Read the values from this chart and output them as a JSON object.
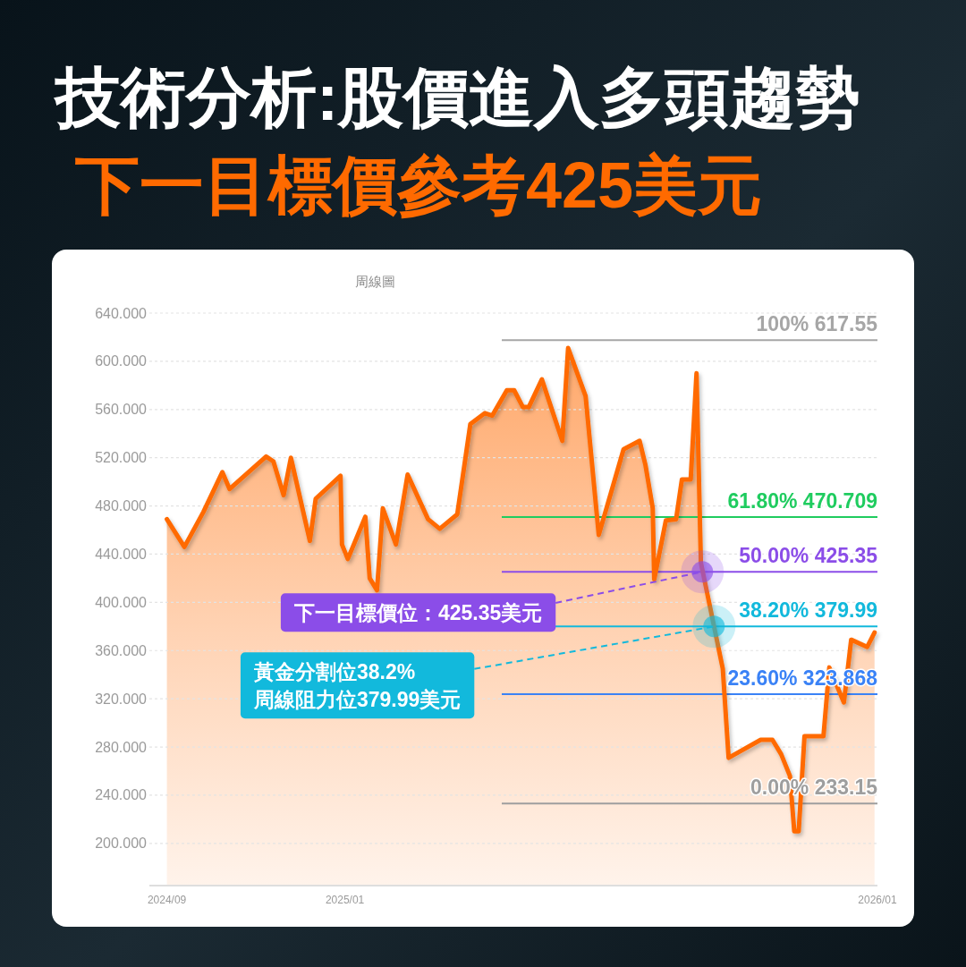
{
  "chart_data": {
    "type": "area",
    "title": "技術分析:股價進入多頭趨勢",
    "subtitle": "下一目標價參考425美元",
    "annotations": [
      "周線圖",
      {
        "text": "下一目標價位：425.35美元",
        "x": "2025-09-03",
        "y": 425.35
      },
      {
        "text": "黃金分割位38.2%\n周線阻力位379.99美元",
        "x": "2025-09-11",
        "y": 379.99
      }
    ],
    "series": [
      {
        "color": "#ff6a00",
        "x": [
          "2024-09-01",
          "2024-09-13",
          "2024-09-26",
          "2024-10-09",
          "2024-10-14",
          "2024-11-08",
          "2024-11-13",
          "2024-11-20",
          "2024-11-25",
          "2024-12-08",
          "2024-12-12",
          "2024-12-29",
          "2024-12-30",
          "2025-01-03",
          "2025-01-15",
          "2025-01-18",
          "2025-01-23",
          "2025-01-27",
          "2025-02-05",
          "2025-02-13",
          "2025-02-27",
          "2025-03-07",
          "2025-03-19",
          "2025-03-28",
          "2025-04-07",
          "2025-04-12",
          "2025-04-22",
          "2025-04-27",
          "2025-05-03",
          "2025-05-07",
          "2025-05-16",
          "2025-05-30",
          "2025-06-03",
          "2025-06-15",
          "2025-06-24",
          "2025-07-11",
          "2025-07-22",
          "2025-07-26",
          "2025-07-31",
          "2025-08-01",
          "2025-08-09",
          "2025-08-16",
          "2025-08-20",
          "2025-08-26",
          "2025-08-30",
          "2025-09-02",
          "2025-09-17",
          "2025-09-21",
          "2025-10-13",
          "2025-10-21",
          "2025-10-27",
          "2025-11-02",
          "2025-11-05",
          "2025-11-08",
          "2025-11-12",
          "2025-11-25",
          "2025-11-29",
          "2025-12-09",
          "2025-12-14",
          "2025-12-25",
          "2025-12-30"
        ],
        "values": [
          469,
          446,
          475,
          508,
          494,
          521,
          517,
          489,
          520,
          451,
          486,
          505,
          448,
          436,
          471,
          420,
          410,
          478,
          448,
          506,
          469,
          461,
          473,
          548,
          557,
          555,
          576,
          576,
          562,
          562,
          585,
          534,
          611,
          571,
          456,
          527,
          534,
          514,
          478,
          419,
          468,
          469,
          502,
          502,
          590,
          433,
          345,
          271,
          286,
          286,
          274,
          256,
          210,
          210,
          289,
          289,
          346,
          317,
          369,
          363,
          375
        ]
      },
      {
        "type": "scatter",
        "x": [
          "2025-09-03",
          "2025-09-11"
        ],
        "values": [
          425.35,
          379.99
        ],
        "colors": [
          "#8b4de8",
          "#12b9dc"
        ]
      }
    ],
    "xlim": [
      "2024-08-20",
      "2026-01-01"
    ],
    "xticks": [
      {
        "value": "2024-09",
        "label": "2024/09"
      },
      {
        "value": "2025-01",
        "label": "2025/01"
      },
      {
        "value": "2026-01",
        "label": "2026/01"
      }
    ],
    "ylim": [
      165,
      640
    ],
    "yticks": [
      {
        "value": 200,
        "label": "200.000"
      },
      {
        "value": 240,
        "label": "240.000"
      },
      {
        "value": 280,
        "label": "280.000"
      },
      {
        "value": 320,
        "label": "320.000"
      },
      {
        "value": 360,
        "label": "360.000"
      },
      {
        "value": 400,
        "label": "400.000"
      },
      {
        "value": 440,
        "label": "440.000"
      },
      {
        "value": 480,
        "label": "480.000"
      },
      {
        "value": 520,
        "label": "520.000"
      },
      {
        "value": 560,
        "label": "560.000"
      },
      {
        "value": 600,
        "label": "600.000"
      },
      {
        "value": 640,
        "label": "640.000"
      }
    ],
    "grid": "y",
    "ref_lines": [
      {
        "axis": "y",
        "value": 617.55,
        "label": "100% 617.55",
        "color": "#a6a6a6"
      },
      {
        "axis": "y",
        "value": 470.709,
        "label": "61.80% 470.709",
        "color": "#1fcc5f"
      },
      {
        "axis": "y",
        "value": 425.35,
        "label": "50.00% 425.35",
        "color": "#8b4de8"
      },
      {
        "axis": "y",
        "value": 379.99,
        "label": "38.20% 379.99",
        "color": "#12b9dc"
      },
      {
        "axis": "y",
        "value": 323.868,
        "label": "23.60% 323.868",
        "color": "#3a82f6"
      },
      {
        "axis": "y",
        "value": 233.15,
        "label": "0.00% 233.15",
        "color": "#9e9e9e"
      }
    ]
  }
}
